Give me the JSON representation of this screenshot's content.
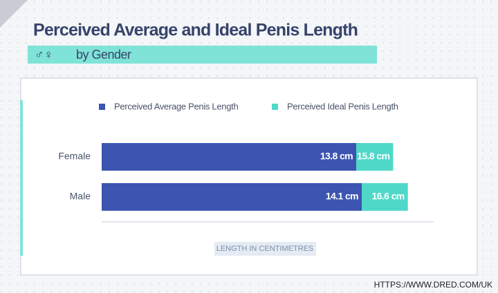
{
  "chart_data": {
    "type": "hbar_overlap",
    "title": "Perceived Average and Ideal Penis Length",
    "symbols": "♂♀",
    "subtitle": "by Gender",
    "categories": [
      "Female",
      "Male"
    ],
    "series": [
      {
        "name": "Perceived Average Penis Length",
        "color": "#3b55b0",
        "values": [
          13.8,
          14.1
        ],
        "value_labels": [
          "13.8 cm",
          "14.1 cm"
        ]
      },
      {
        "name": "Perceived Ideal Penis Length",
        "color": "#4fd8c8",
        "values": [
          15.8,
          16.6
        ],
        "value_labels": [
          "15.8 cm",
          "16.6 cm"
        ]
      }
    ],
    "xlim": [
      0,
      18
    ],
    "xlabel": "LENGTH IN CENTIMETRES",
    "source": "HTTPS://WWW.DRED.COM/UK"
  }
}
